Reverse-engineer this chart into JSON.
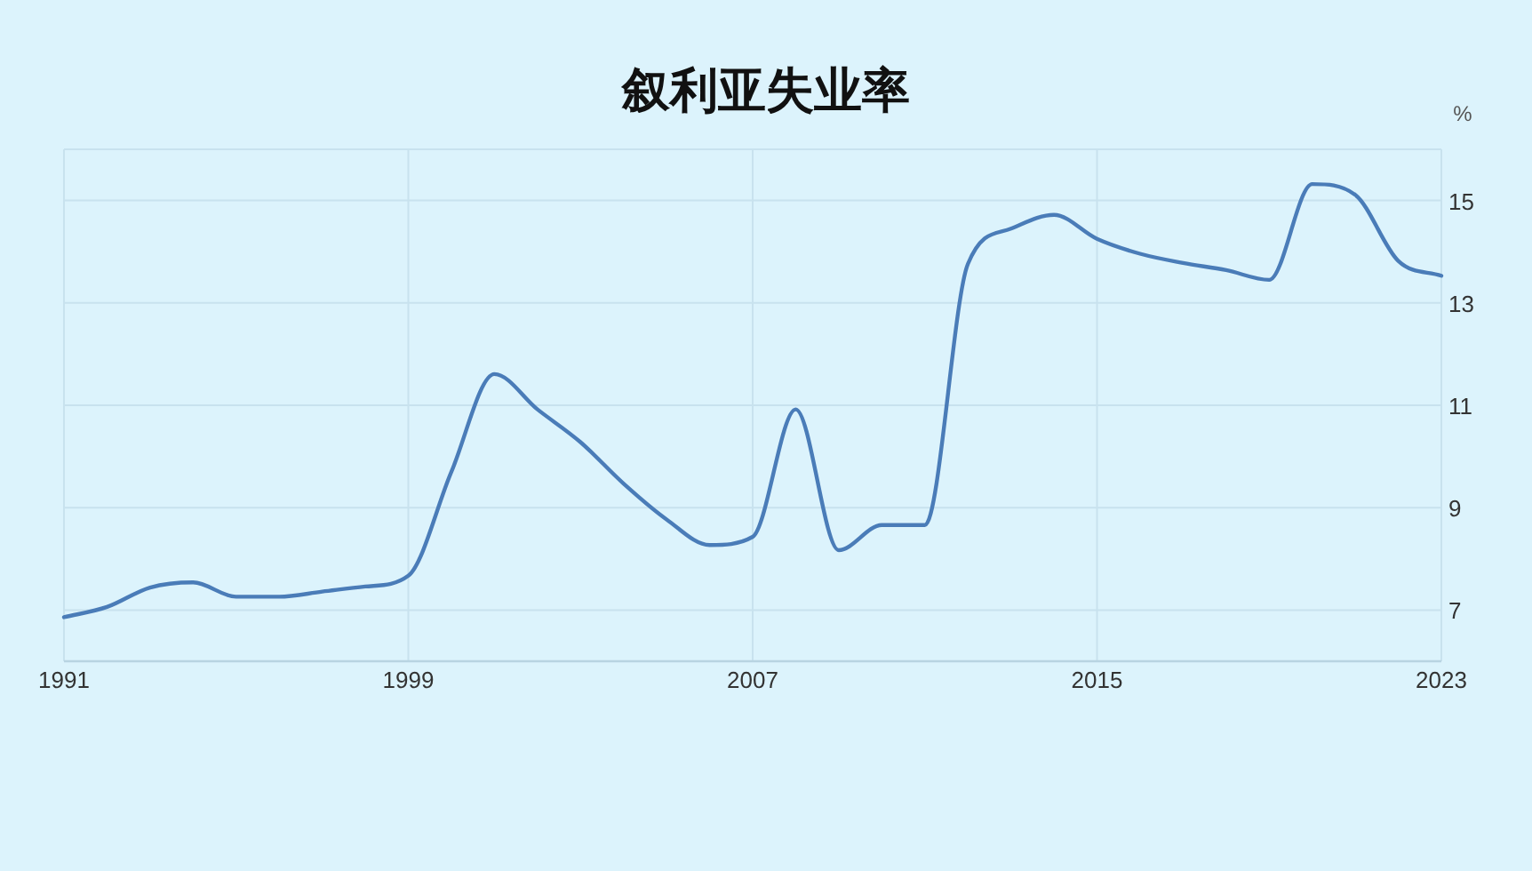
{
  "chart_data": {
    "type": "line",
    "title": "叙利亚失业率",
    "ylabel": "%",
    "x": [
      1991,
      1992,
      1993,
      1994,
      1995,
      1996,
      1997,
      1998,
      1999,
      2000,
      2001,
      2002,
      2003,
      2004,
      2005,
      2006,
      2007,
      2008,
      2009,
      2010,
      2011,
      2012,
      2013,
      2014,
      2015,
      2016,
      2017,
      2018,
      2019,
      2020,
      2021,
      2022,
      2023
    ],
    "series": [
      {
        "color": "#4a7cb8",
        "values": [
          6.86,
          7.06,
          7.44,
          7.54,
          7.26,
          7.26,
          7.36,
          7.46,
          7.67,
          9.7,
          11.61,
          10.92,
          10.28,
          9.47,
          8.77,
          8.27,
          8.43,
          10.92,
          8.17,
          8.66,
          8.66,
          13.76,
          14.45,
          14.72,
          14.25,
          13.96,
          13.78,
          13.64,
          13.45,
          15.32,
          15.11,
          13.82,
          13.53
        ]
      }
    ],
    "xlim": [
      1991,
      2023
    ],
    "ylim": [
      6,
      16
    ],
    "xticks": [
      1991,
      1999,
      2007,
      2015,
      2023
    ],
    "yticks": [
      7,
      9,
      11,
      13,
      15
    ],
    "grid": true
  }
}
